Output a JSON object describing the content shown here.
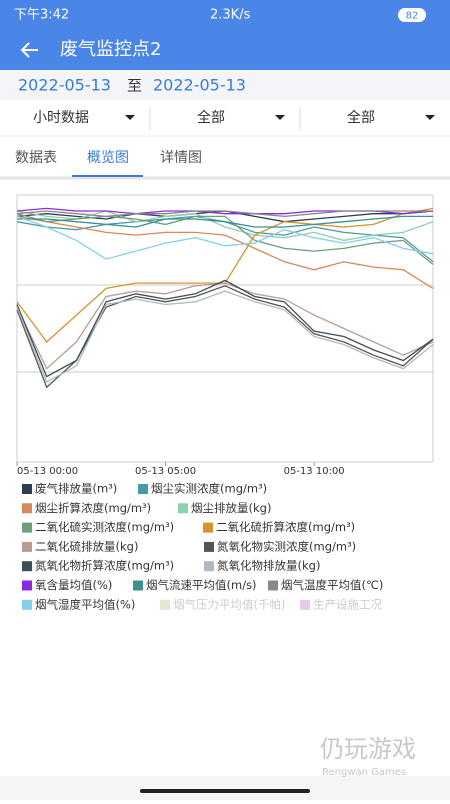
{
  "status_bar": {
    "time": "下午3:42",
    "speed": "2.3K/s",
    "battery": "82"
  },
  "header": {
    "title": "废气监控点2"
  },
  "date_range": {
    "start": "2022-05-13",
    "separator": "至",
    "end": "2022-05-13"
  },
  "filters": [
    "小时数据",
    "全部",
    "全部"
  ],
  "tabs": [
    "数据表",
    "概览图",
    "详情图"
  ],
  "watermark": {
    "name": "仍玩游戏",
    "sub": "Rengwan Games"
  },
  "chart_data": {
    "type": "line",
    "x": [
      0,
      1,
      2,
      3,
      4,
      5,
      6,
      7,
      8,
      9,
      10,
      11,
      12,
      13,
      14
    ],
    "xlim": [
      0,
      14
    ],
    "xticks": [
      {
        "value": 0,
        "label": "05-13 00:00"
      },
      {
        "value": 5,
        "label": "05-13 05:00"
      },
      {
        "value": 10,
        "label": "05-13 10:00"
      }
    ],
    "ylim": [
      0,
      100
    ],
    "ygrid": [
      33.7,
      66.3
    ],
    "series": [
      {
        "name": "废气排放量(m³)",
        "color": "#2c3e50",
        "values": [
          92,
          93,
          92,
          91,
          93,
          92,
          93,
          94,
          92,
          90,
          91,
          92,
          93,
          93,
          94
        ]
      },
      {
        "name": "烟尘实测浓度(mg/m³)",
        "color": "#4a9aa5",
        "values": [
          90,
          88,
          87,
          89,
          90,
          91,
          92,
          90,
          86,
          85,
          88,
          86,
          85,
          84,
          75
        ]
      },
      {
        "name": "烟尘折算浓度(mg/m³)",
        "color": "#d9885c",
        "values": [
          92,
          90,
          88,
          86,
          85,
          86,
          86,
          85,
          80,
          75,
          72,
          75,
          73,
          72,
          65
        ]
      },
      {
        "name": "烟尘排放量(kg)",
        "color": "#8fcfae",
        "values": [
          94,
          92,
          91,
          94,
          90,
          92,
          93,
          88,
          85,
          84,
          86,
          83,
          85,
          86,
          90
        ]
      },
      {
        "name": "二氧化硫实测浓度(mg/m³)",
        "color": "#6e9e7c",
        "values": [
          93,
          90,
          91,
          92,
          91,
          89,
          92,
          92,
          83,
          80,
          79,
          80,
          82,
          83,
          74
        ]
      },
      {
        "name": "二氧化硫折算浓度(mg/m³)",
        "color": "#d4952b",
        "values": [
          60,
          45,
          55,
          65,
          67,
          67,
          67,
          67,
          85,
          90,
          89,
          88,
          89,
          93,
          95
        ]
      },
      {
        "name": "二氧化硫排放量(kg)",
        "color": "#b89c94",
        "values": [
          58,
          35,
          45,
          62,
          64,
          63,
          66,
          67,
          63,
          61,
          55,
          50,
          45,
          40,
          45
        ]
      },
      {
        "name": "氮氧化物实测浓度(mg/m³)",
        "color": "#555555",
        "values": [
          57,
          28,
          38,
          58,
          62,
          60,
          62,
          66,
          61,
          58,
          48,
          45,
          40,
          36,
          46
        ]
      },
      {
        "name": "氮氧化物折算浓度(mg/m³)",
        "color": "#3d4e57",
        "values": [
          59,
          32,
          38,
          60,
          63,
          61,
          63,
          68,
          62,
          60,
          49,
          47,
          42,
          38,
          46
        ]
      },
      {
        "name": "氮氧化物排放量(kg)",
        "color": "#b0b8c0",
        "values": [
          58,
          30,
          36,
          59,
          61,
          59,
          60,
          64,
          60,
          57,
          47,
          44,
          39,
          35,
          44
        ]
      },
      {
        "name": "氧含量均值(%)",
        "color": "#8a2be2",
        "values": [
          94,
          95,
          94,
          94,
          93,
          94,
          94,
          93,
          93,
          93,
          94,
          94,
          94,
          93,
          94
        ]
      },
      {
        "name": "烟气流速平均值(m/s)",
        "color": "#3b8f8f",
        "values": [
          91,
          91,
          90,
          89,
          88,
          91,
          91,
          90,
          88,
          88,
          89,
          90,
          91,
          92,
          92
        ]
      },
      {
        "name": "烟气温度平均值(℃)",
        "color": "#888888",
        "values": [
          93,
          94,
          93,
          92,
          93,
          93,
          94,
          94,
          93,
          92,
          93,
          94,
          94,
          94,
          94
        ]
      },
      {
        "name": "烟气湿度平均值(%)",
        "color": "#87ceeb",
        "values": [
          92,
          88,
          83,
          76,
          79,
          82,
          84,
          81,
          82,
          87,
          84,
          82,
          84,
          80,
          78
        ]
      },
      {
        "name": "烟气压力平均值(千帕)",
        "color": "#e6e6d2",
        "visible": false
      },
      {
        "name": "生产设施工况",
        "color": "#e6cce6",
        "visible": false
      }
    ]
  }
}
